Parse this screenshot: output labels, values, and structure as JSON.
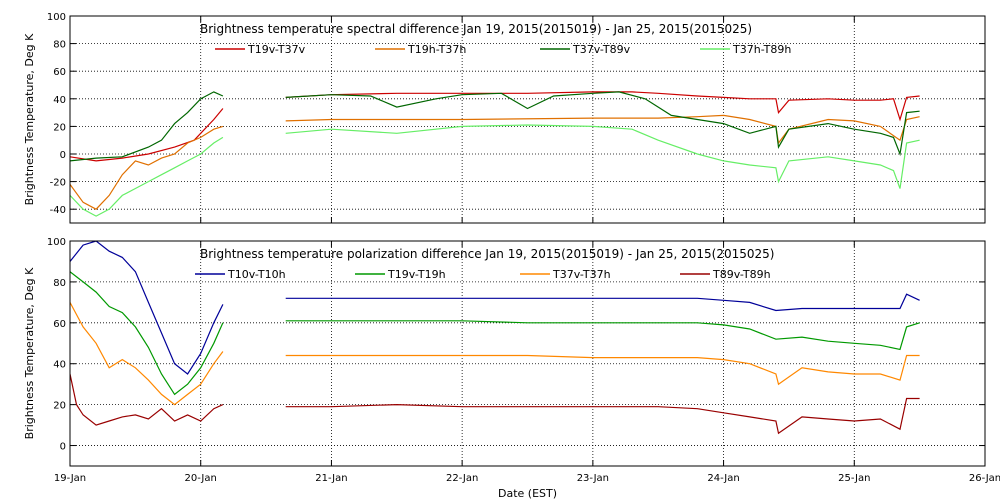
{
  "figure": {
    "xlabel": "Date (EST)",
    "x_ticks": [
      "19-Jan",
      "20-Jan",
      "21-Jan",
      "22-Jan",
      "23-Jan",
      "24-Jan",
      "25-Jan",
      "26-Jan"
    ]
  },
  "chart_data": [
    {
      "type": "line",
      "title": "Brightness temperature spectral difference     Jan 19, 2015(2015019)  - Jan 25, 2015(2015025)",
      "ylabel": "Brightness Temperature, Deg K",
      "xlim": [
        19,
        26
      ],
      "ylim": [
        -50,
        100
      ],
      "yticks": [
        -40,
        -20,
        0,
        20,
        40,
        60,
        80,
        100
      ],
      "grid": true,
      "legend_position": "top",
      "series": [
        {
          "name": "T19v-T37v",
          "color": "#cc0000",
          "x": [
            19.0,
            19.2,
            19.4,
            19.6,
            19.8,
            19.95,
            20.0,
            20.1,
            20.17,
            20.65,
            21.0,
            21.5,
            22.0,
            22.5,
            23.0,
            23.3,
            23.5,
            23.8,
            24.0,
            24.2,
            24.4,
            24.42,
            24.5,
            24.8,
            25.0,
            25.2,
            25.3,
            25.35,
            25.4,
            25.5
          ],
          "y": [
            -2,
            -5,
            -3,
            0,
            5,
            10,
            15,
            25,
            33,
            41,
            43,
            44,
            44,
            44,
            45,
            45,
            44,
            42,
            41,
            40,
            40,
            30,
            39,
            40,
            39,
            39,
            40,
            25,
            41,
            42
          ]
        },
        {
          "name": "T19h-T37h",
          "color": "#e07000",
          "x": [
            19.0,
            19.1,
            19.2,
            19.3,
            19.4,
            19.5,
            19.6,
            19.7,
            19.8,
            19.9,
            20.0,
            20.1,
            20.17,
            20.65,
            21.0,
            22.0,
            23.0,
            23.5,
            23.8,
            24.0,
            24.2,
            24.4,
            24.42,
            24.5,
            24.8,
            25.0,
            25.2,
            25.35,
            25.4,
            25.5
          ],
          "y": [
            -22,
            -35,
            -40,
            -30,
            -15,
            -5,
            -8,
            -3,
            0,
            8,
            12,
            18,
            20,
            24,
            25,
            25,
            26,
            26,
            27,
            28,
            25,
            20,
            8,
            18,
            25,
            24,
            20,
            10,
            25,
            27
          ]
        },
        {
          "name": "T37v-T89v",
          "color": "#006600",
          "x": [
            19.0,
            19.2,
            19.4,
            19.6,
            19.7,
            19.8,
            19.9,
            20.0,
            20.1,
            20.17,
            20.65,
            21.0,
            21.3,
            21.5,
            21.8,
            22.0,
            22.3,
            22.5,
            22.7,
            23.0,
            23.2,
            23.4,
            23.6,
            23.8,
            24.0,
            24.2,
            24.4,
            24.42,
            24.5,
            24.8,
            25.0,
            25.2,
            25.3,
            25.35,
            25.4,
            25.5
          ],
          "y": [
            -5,
            -3,
            -2,
            5,
            10,
            22,
            30,
            40,
            45,
            42,
            41,
            43,
            42,
            34,
            40,
            43,
            44,
            33,
            42,
            44,
            45,
            40,
            28,
            25,
            22,
            15,
            20,
            5,
            18,
            22,
            18,
            15,
            12,
            0,
            30,
            31
          ]
        },
        {
          "name": "T37h-T89h",
          "color": "#66ee66",
          "x": [
            19.0,
            19.1,
            19.2,
            19.3,
            19.4,
            19.5,
            19.6,
            19.7,
            19.8,
            19.9,
            20.0,
            20.1,
            20.17,
            20.65,
            21.0,
            21.5,
            22.0,
            22.5,
            23.0,
            23.3,
            23.5,
            23.8,
            24.0,
            24.2,
            24.4,
            24.42,
            24.5,
            24.8,
            25.0,
            25.2,
            25.3,
            25.35,
            25.4,
            25.5
          ],
          "y": [
            -30,
            -40,
            -45,
            -40,
            -30,
            -25,
            -20,
            -15,
            -10,
            -5,
            0,
            8,
            12,
            15,
            18,
            15,
            20,
            21,
            20,
            18,
            10,
            0,
            -5,
            -8,
            -10,
            -20,
            -5,
            -2,
            -5,
            -8,
            -12,
            -25,
            8,
            10
          ]
        }
      ]
    },
    {
      "type": "line",
      "title": "Brightness temperature polarization difference     Jan 19, 2015(2015019)  - Jan 25, 2015(2015025)",
      "ylabel": "Brightness Temperature, Deg K",
      "xlim": [
        19,
        26
      ],
      "ylim": [
        -10,
        100
      ],
      "yticks": [
        0,
        20,
        40,
        60,
        80,
        100
      ],
      "grid": true,
      "legend_position": "top",
      "series": [
        {
          "name": "T10v-T10h",
          "color": "#000099",
          "x": [
            19.0,
            19.1,
            19.2,
            19.3,
            19.4,
            19.5,
            19.6,
            19.7,
            19.8,
            19.9,
            20.0,
            20.1,
            20.17,
            20.65,
            21.0,
            21.5,
            22.0,
            22.5,
            23.0,
            23.5,
            23.8,
            24.0,
            24.2,
            24.4,
            24.6,
            24.8,
            25.0,
            25.2,
            25.35,
            25.4,
            25.5
          ],
          "y": [
            90,
            98,
            100,
            95,
            92,
            85,
            70,
            55,
            40,
            35,
            45,
            60,
            69,
            72,
            72,
            72,
            72,
            72,
            72,
            72,
            72,
            71,
            70,
            66,
            67,
            67,
            67,
            67,
            67,
            74,
            71
          ]
        },
        {
          "name": "T19v-T19h",
          "color": "#009900",
          "x": [
            19.0,
            19.1,
            19.2,
            19.3,
            19.4,
            19.5,
            19.6,
            19.7,
            19.8,
            19.9,
            20.0,
            20.1,
            20.17,
            20.65,
            21.0,
            21.5,
            22.0,
            22.5,
            23.0,
            23.5,
            23.8,
            24.0,
            24.2,
            24.4,
            24.6,
            24.8,
            25.0,
            25.2,
            25.35,
            25.4,
            25.5
          ],
          "y": [
            85,
            80,
            75,
            68,
            65,
            58,
            48,
            35,
            25,
            30,
            38,
            50,
            60,
            61,
            61,
            61,
            61,
            60,
            60,
            60,
            60,
            59,
            57,
            52,
            53,
            51,
            50,
            49,
            47,
            58,
            60
          ]
        },
        {
          "name": "T37v-T37h",
          "color": "#ff8800",
          "x": [
            19.0,
            19.1,
            19.2,
            19.3,
            19.4,
            19.5,
            19.6,
            19.7,
            19.8,
            19.9,
            20.0,
            20.1,
            20.17,
            20.65,
            21.0,
            21.5,
            22.0,
            22.5,
            23.0,
            23.5,
            23.8,
            24.0,
            24.2,
            24.4,
            24.42,
            24.6,
            24.8,
            25.0,
            25.2,
            25.35,
            25.4,
            25.5
          ],
          "y": [
            70,
            58,
            50,
            38,
            42,
            38,
            32,
            25,
            20,
            25,
            30,
            40,
            46,
            44,
            44,
            44,
            44,
            44,
            43,
            43,
            43,
            42,
            40,
            35,
            30,
            38,
            36,
            35,
            35,
            32,
            44,
            44
          ]
        },
        {
          "name": "T89v-T89h",
          "color": "#990000",
          "x": [
            19.0,
            19.05,
            19.1,
            19.2,
            19.3,
            19.4,
            19.5,
            19.6,
            19.7,
            19.8,
            19.9,
            20.0,
            20.1,
            20.17,
            20.65,
            21.0,
            21.5,
            22.0,
            22.5,
            23.0,
            23.5,
            23.8,
            24.0,
            24.2,
            24.4,
            24.42,
            24.6,
            24.8,
            25.0,
            25.2,
            25.35,
            25.4,
            25.5
          ],
          "y": [
            35,
            20,
            15,
            10,
            12,
            14,
            15,
            13,
            18,
            12,
            15,
            12,
            18,
            20,
            19,
            19,
            20,
            19,
            19,
            19,
            19,
            18,
            16,
            14,
            12,
            6,
            14,
            13,
            12,
            13,
            8,
            23,
            23
          ]
        }
      ]
    }
  ]
}
